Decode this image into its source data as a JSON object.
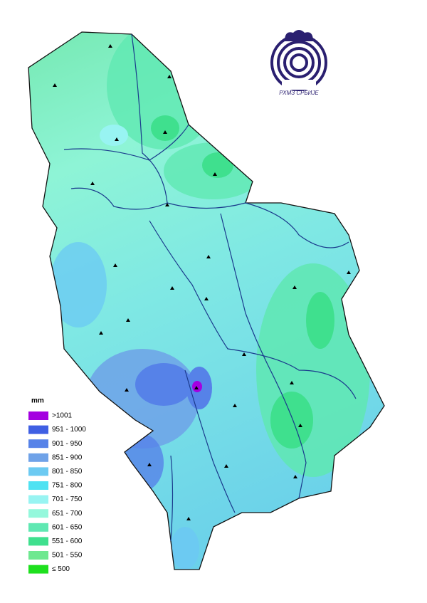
{
  "legend": {
    "title": "mm",
    "items": [
      {
        "label": ">1001",
        "color": "#a400e0"
      },
      {
        "label": "951 - 1000",
        "color": "#3f5fe3"
      },
      {
        "label": "901 - 950",
        "color": "#5682e8"
      },
      {
        "label": "851 - 900",
        "color": "#6fa2e8"
      },
      {
        "label": "801 - 850",
        "color": "#6ccaf2"
      },
      {
        "label": "751 - 800",
        "color": "#4fe2f2"
      },
      {
        "label": "701 - 750",
        "color": "#98f4f2"
      },
      {
        "label": "651 - 700",
        "color": "#94f8dc"
      },
      {
        "label": "601 - 650",
        "color": "#5fe8b2"
      },
      {
        "label": "551 - 600",
        "color": "#3fe08e"
      },
      {
        "label": "501 - 550",
        "color": "#6ee890"
      },
      {
        "label": "≤ 500",
        "color": "#1ee01e"
      }
    ]
  },
  "logo": {
    "text": "РХМЗ СРБИЈЕ"
  }
}
